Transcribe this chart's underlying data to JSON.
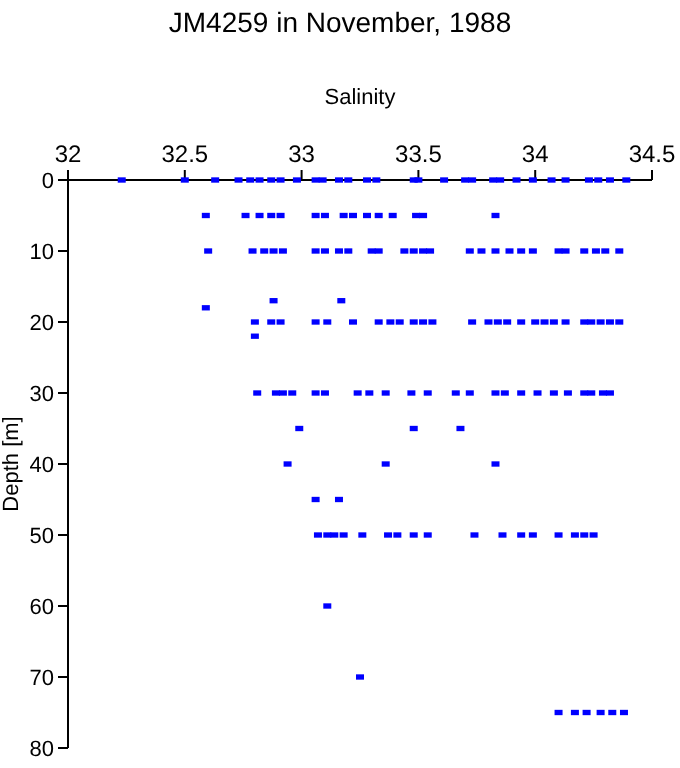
{
  "chart_data": {
    "type": "scatter",
    "title": "JM4259 in November, 1988",
    "xlabel": "Salinity",
    "ylabel": "Depth [m]",
    "xlim": [
      32,
      34.5
    ],
    "xticks": [
      32,
      32.5,
      33,
      33.5,
      34,
      34.5
    ],
    "ylim": [
      80,
      0
    ],
    "yticks": [
      0,
      10,
      20,
      30,
      40,
      50,
      60,
      70,
      80
    ],
    "marker": "square",
    "series": [
      {
        "color": "#0000ff",
        "x": [
          32.23,
          32.5,
          32.63,
          32.73,
          32.78,
          32.82,
          32.87,
          32.91,
          32.98,
          33.06,
          33.09,
          33.16,
          33.2,
          33.28,
          33.32,
          33.48,
          33.5,
          33.61,
          33.7,
          33.73,
          33.82,
          33.85,
          33.92,
          33.99,
          34.07,
          34.13,
          34.23,
          34.27,
          34.32,
          34.39,
          32.59,
          32.76,
          32.82,
          32.87,
          32.91,
          33.06,
          33.1,
          33.18,
          33.22,
          33.28,
          33.33,
          33.39,
          33.49,
          33.52,
          33.83,
          32.6,
          32.79,
          32.84,
          32.88,
          32.92,
          33.06,
          33.1,
          33.16,
          33.2,
          33.3,
          33.33,
          33.44,
          33.48,
          33.52,
          33.55,
          33.72,
          33.77,
          33.83,
          33.89,
          33.94,
          33.99,
          34.1,
          34.13,
          34.21,
          34.26,
          34.3,
          34.36,
          32.59,
          32.88,
          33.17,
          32.8,
          32.87,
          32.91,
          33.06,
          33.11,
          33.22,
          33.33,
          33.38,
          33.42,
          33.48,
          33.52,
          33.56,
          33.73,
          33.8,
          33.84,
          33.88,
          33.94,
          34.0,
          34.04,
          34.08,
          34.13,
          34.21,
          34.24,
          34.28,
          34.32,
          34.36,
          32.8,
          32.81,
          32.89,
          32.92,
          32.96,
          33.06,
          33.1,
          33.24,
          33.29,
          33.36,
          33.47,
          33.54,
          33.66,
          33.72,
          33.83,
          33.87,
          33.94,
          34.01,
          34.08,
          34.14,
          34.21,
          34.24,
          34.29,
          34.32,
          32.99,
          33.48,
          33.68,
          32.94,
          33.36,
          33.83,
          33.06,
          33.16,
          33.07,
          33.11,
          33.14,
          33.18,
          33.26,
          33.37,
          33.41,
          33.48,
          33.54,
          33.74,
          33.86,
          33.94,
          33.99,
          34.1,
          34.17,
          34.21,
          34.25,
          33.11,
          33.25,
          34.1,
          34.17,
          34.22,
          34.28,
          34.33,
          34.38
        ],
        "values": [
          0,
          0,
          0,
          0,
          0,
          0,
          0,
          0,
          0,
          0,
          0,
          0,
          0,
          0,
          0,
          0,
          0,
          0,
          0,
          0,
          0,
          0,
          0,
          0,
          0,
          0,
          0,
          0,
          0,
          0,
          5,
          5,
          5,
          5,
          5,
          5,
          5,
          5,
          5,
          5,
          5,
          5,
          5,
          5,
          5,
          10,
          10,
          10,
          10,
          10,
          10,
          10,
          10,
          10,
          10,
          10,
          10,
          10,
          10,
          10,
          10,
          10,
          10,
          10,
          10,
          10,
          10,
          10,
          10,
          10,
          10,
          10,
          18,
          17,
          17,
          20,
          20,
          20,
          20,
          20,
          20,
          20,
          20,
          20,
          20,
          20,
          20,
          20,
          20,
          20,
          20,
          20,
          20,
          20,
          20,
          20,
          20,
          20,
          20,
          20,
          20,
          22,
          30,
          30,
          30,
          30,
          30,
          30,
          30,
          30,
          30,
          30,
          30,
          30,
          30,
          30,
          30,
          30,
          30,
          30,
          30,
          30,
          30,
          30,
          30,
          35,
          35,
          35,
          40,
          40,
          40,
          45,
          45,
          50,
          50,
          50,
          50,
          50,
          50,
          50,
          50,
          50,
          50,
          50,
          50,
          50,
          50,
          50,
          50,
          50,
          60,
          70,
          75,
          75,
          75,
          75,
          75,
          75
        ]
      }
    ]
  }
}
